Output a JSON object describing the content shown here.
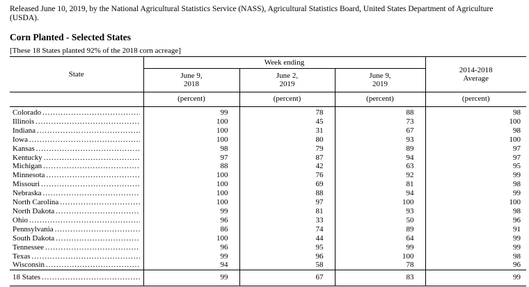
{
  "page": {
    "released_line": "Released June 10, 2019, by the National Agricultural Statistics Service (NASS), Agricultural Statistics Board, United States Department of Agriculture (USDA).",
    "title": "Corn Planted - Selected States",
    "note": "[These 18 States planted 92% of the 2018 corn acreage]"
  },
  "table": {
    "col_state_header": "State",
    "group_header": "Week ending",
    "col_headers": [
      "June 9,\n2018",
      "June 2,\n2019",
      "June 9,\n2019"
    ],
    "avg_header": "2014-2018\nAverage",
    "unit_label": "(percent)",
    "rows": [
      {
        "state": "Colorado",
        "values": [
          99,
          78,
          88,
          98
        ]
      },
      {
        "state": "Illinois",
        "values": [
          100,
          45,
          73,
          100
        ]
      },
      {
        "state": "Indiana",
        "values": [
          100,
          31,
          67,
          98
        ]
      },
      {
        "state": "Iowa",
        "values": [
          100,
          80,
          93,
          100
        ]
      },
      {
        "state": "Kansas",
        "values": [
          98,
          79,
          89,
          97
        ]
      },
      {
        "state": "Kentucky",
        "values": [
          97,
          87,
          94,
          97
        ]
      },
      {
        "state": "Michigan",
        "values": [
          88,
          42,
          63,
          95
        ]
      },
      {
        "state": "Minnesota",
        "values": [
          100,
          76,
          92,
          99
        ]
      },
      {
        "state": "Missouri",
        "values": [
          100,
          69,
          81,
          98
        ]
      },
      {
        "state": "Nebraska",
        "values": [
          100,
          88,
          94,
          99
        ]
      },
      {
        "state": "North Carolina",
        "values": [
          100,
          97,
          100,
          100
        ]
      },
      {
        "state": "North Dakota",
        "values": [
          99,
          81,
          93,
          98
        ]
      },
      {
        "state": "Ohio",
        "values": [
          96,
          33,
          50,
          96
        ]
      },
      {
        "state": "Pennsylvania",
        "values": [
          86,
          74,
          89,
          91
        ]
      },
      {
        "state": "South Dakota",
        "values": [
          100,
          44,
          64,
          99
        ]
      },
      {
        "state": "Tennessee",
        "values": [
          96,
          95,
          99,
          99
        ]
      },
      {
        "state": "Texas",
        "values": [
          99,
          96,
          100,
          98
        ]
      },
      {
        "state": "Wisconsin",
        "values": [
          94,
          58,
          78,
          96
        ]
      }
    ],
    "total_row": {
      "state": "18 States",
      "values": [
        99,
        67,
        83,
        99
      ]
    }
  }
}
